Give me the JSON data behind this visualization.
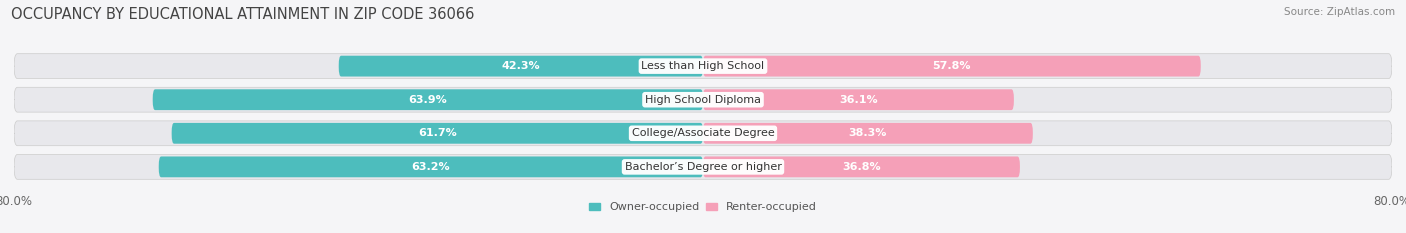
{
  "title": "OCCUPANCY BY EDUCATIONAL ATTAINMENT IN ZIP CODE 36066",
  "source": "Source: ZipAtlas.com",
  "categories": [
    "Less than High School",
    "High School Diploma",
    "College/Associate Degree",
    "Bachelor’s Degree or higher"
  ],
  "owner_values": [
    42.3,
    63.9,
    61.7,
    63.2
  ],
  "renter_values": [
    57.8,
    36.1,
    38.3,
    36.8
  ],
  "owner_color": "#4dbdbd",
  "renter_color": "#f5a0b8",
  "bar_bg_color": "#e8e8ec",
  "background_color": "#f5f5f7",
  "title_fontsize": 10.5,
  "source_fontsize": 7.5,
  "label_fontsize": 8,
  "category_fontsize": 8,
  "legend_fontsize": 8,
  "owner_inside_threshold": 15,
  "renter_inside_threshold": 15,
  "xlim": [
    -80,
    80
  ],
  "bar_height": 0.62
}
